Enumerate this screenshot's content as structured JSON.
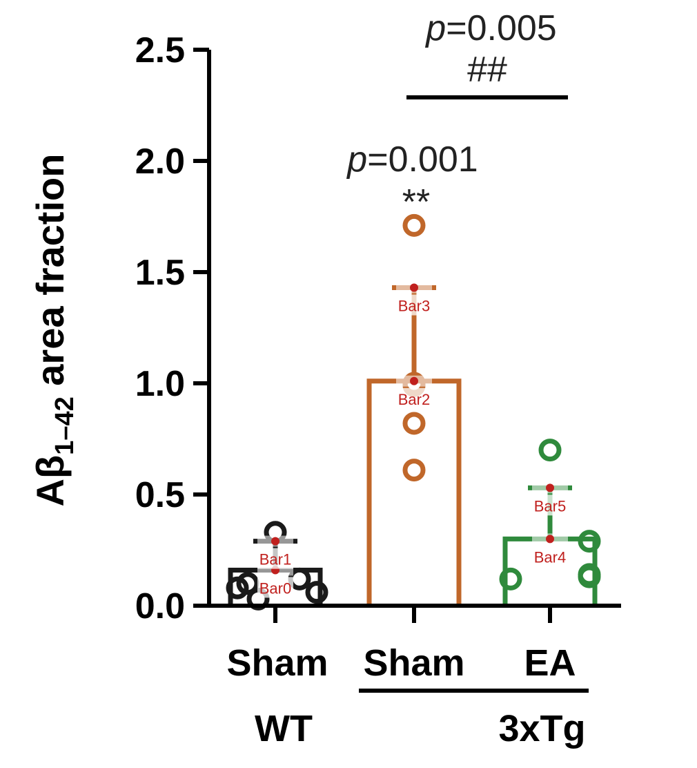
{
  "chart_data": {
    "type": "bar",
    "ylabel_main": "Aβ",
    "ylabel_sub": "1–42",
    "ylabel_rest": " area fraction",
    "ylim": [
      0,
      2.5
    ],
    "yticks": [
      "0.0",
      "0.5",
      "1.0",
      "1.5",
      "2.0",
      "2.5"
    ],
    "grid": false,
    "categories": [
      "Sham",
      "Sham",
      "EA"
    ],
    "group_labels": [
      {
        "label": "WT",
        "covers": [
          0
        ]
      },
      {
        "label": "3xTg",
        "covers": [
          1,
          2
        ]
      }
    ],
    "series": [
      {
        "values": [
          0.16,
          1.01,
          0.3
        ],
        "error_upper": [
          0.29,
          1.43,
          0.53
        ],
        "colors": [
          "#1a1a1a",
          "#c0672a",
          "#2f8a3c"
        ],
        "points": [
          [
            0.33,
            0.1,
            0.06,
            0.03,
            0.12,
            0.08
          ],
          [
            1.71,
            1.0,
            0.99,
            0.82,
            0.61
          ],
          [
            0.7,
            0.29,
            0.14,
            0.13,
            0.12
          ]
        ]
      }
    ],
    "annotations": [
      {
        "p_italic": "p",
        "p_text": "=0.001",
        "marker": "**",
        "target": 1
      },
      {
        "p_italic": "p",
        "p_text": "=0.005",
        "marker": "##",
        "from": 1,
        "to": 2
      }
    ],
    "overlay_markers": [
      {
        "label": "Bar0",
        "category": 0,
        "value": 0.16
      },
      {
        "label": "Bar1",
        "category": 0,
        "value": 0.29
      },
      {
        "label": "Bar2",
        "category": 1,
        "value": 1.01
      },
      {
        "label": "Bar3",
        "category": 1,
        "value": 1.43
      },
      {
        "label": "Bar4",
        "category": 2,
        "value": 0.3
      },
      {
        "label": "Bar5",
        "category": 2,
        "value": 0.53
      }
    ]
  }
}
